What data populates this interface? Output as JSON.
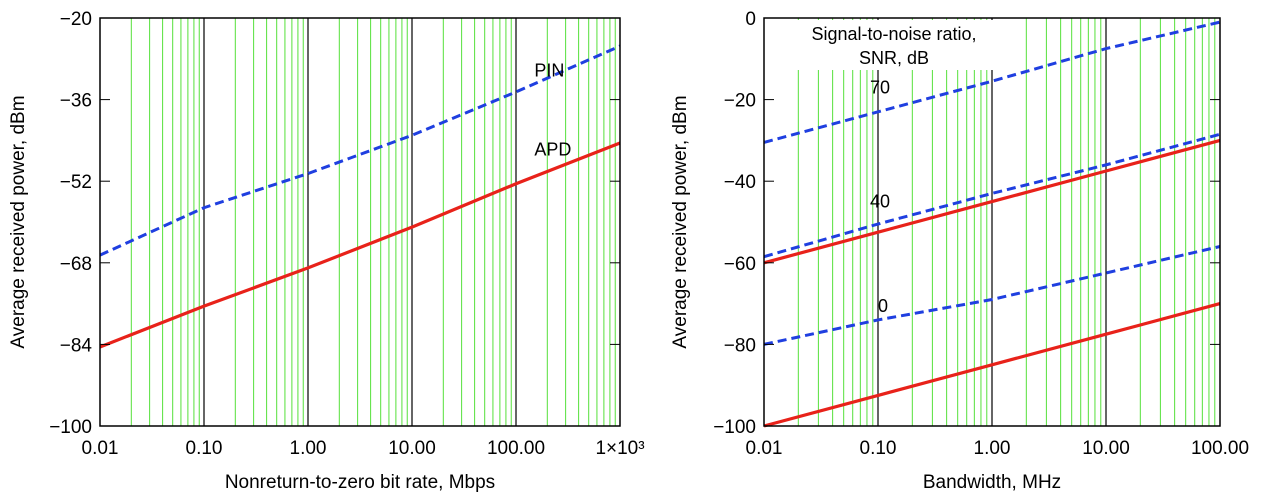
{
  "chart_data": [
    {
      "type": "line",
      "xscale": "log",
      "xlim": [
        0.01,
        1000
      ],
      "ylim": [
        -100,
        -20
      ],
      "xlabel": "Nonreturn-to-zero bit rate, Mbps",
      "ylabel": "Average received power, dBm",
      "x_ticks": [
        "0.01",
        "0.10",
        "1.00",
        "10.00",
        "100.00",
        "1×10³"
      ],
      "y_ticks": [
        "−20",
        "−36",
        "−52",
        "−68",
        "−84",
        "−100"
      ],
      "y_tick_values": [
        -20,
        -36,
        -52,
        -68,
        -84,
        -100
      ],
      "grid": "vertical log-minor lines",
      "series": [
        {
          "name": "PIN",
          "style": "dashed",
          "color": "#1f3fe0",
          "x": [
            0.01,
            0.1,
            1,
            10,
            100,
            1000
          ],
          "y": [
            -66.5,
            -57.2,
            -50.5,
            -43,
            -34.5,
            -25.5
          ]
        },
        {
          "name": "APD",
          "style": "solid",
          "color": "#e8221a",
          "x": [
            0.01,
            0.1,
            1,
            10,
            100,
            1000
          ],
          "y": [
            -84.5,
            -76.5,
            -69,
            -61,
            -52.5,
            -44.5
          ]
        }
      ],
      "annotations": [
        {
          "text": "PIN",
          "x": 150,
          "y": -31.5
        },
        {
          "text": "APD",
          "x": 150,
          "y": -47
        }
      ]
    },
    {
      "type": "line",
      "xscale": "log",
      "xlim": [
        0.01,
        100
      ],
      "ylim": [
        -100,
        0
      ],
      "xlabel": "Bandwidth, MHz",
      "ylabel": "Average received power, dBm",
      "x_ticks": [
        "0.01",
        "0.10",
        "1.00",
        "10.00",
        "100.00"
      ],
      "y_ticks": [
        "0",
        "−20",
        "−40",
        "−60",
        "−80",
        "−100"
      ],
      "y_tick_values": [
        0,
        -20,
        -40,
        -60,
        -80,
        -100
      ],
      "grid": "vertical log-minor lines",
      "legend_title": [
        "Signal-to-noise ratio,",
        "SNR, dB"
      ],
      "series": [
        {
          "name": "70",
          "style": "dashed",
          "color": "#1f3fe0",
          "x": [
            0.01,
            0.1,
            1,
            10,
            100
          ],
          "y": [
            -30.5,
            -23,
            -15.5,
            -7.5,
            -1
          ]
        },
        {
          "name": "40",
          "style": "dashed",
          "color": "#1f3fe0",
          "x": [
            0.01,
            0.1,
            1,
            10,
            100
          ],
          "y": [
            -58.5,
            -50.5,
            -43,
            -36,
            -28.5
          ]
        },
        {
          "name": "0",
          "style": "dashed",
          "color": "#1f3fe0",
          "x": [
            0.01,
            0.1,
            1,
            10,
            100
          ],
          "y": [
            -80,
            -74,
            -69,
            -62.5,
            -56
          ]
        },
        {
          "name": "",
          "style": "solid",
          "color": "#e8221a",
          "x": [
            0.01,
            0.1,
            1,
            10,
            100
          ],
          "y": [
            -60,
            -52.5,
            -45,
            -37.5,
            -30
          ]
        },
        {
          "name": "",
          "style": "solid",
          "color": "#e8221a",
          "x": [
            0.01,
            0.1,
            1,
            10,
            100
          ],
          "y": [
            -100,
            -92.5,
            -85,
            -77.5,
            -70
          ]
        }
      ],
      "annotations": [
        {
          "text": "70",
          "x": 0.085,
          "y": -18.5
        },
        {
          "text": "40",
          "x": 0.085,
          "y": -46.5
        },
        {
          "text": "0",
          "x": 0.1,
          "y": -72
        }
      ]
    }
  ],
  "colors": {
    "grid_minor": "#55e03a",
    "grid_major": "#000000",
    "dashed": "#1f3fe0",
    "solid": "#e8221a"
  }
}
